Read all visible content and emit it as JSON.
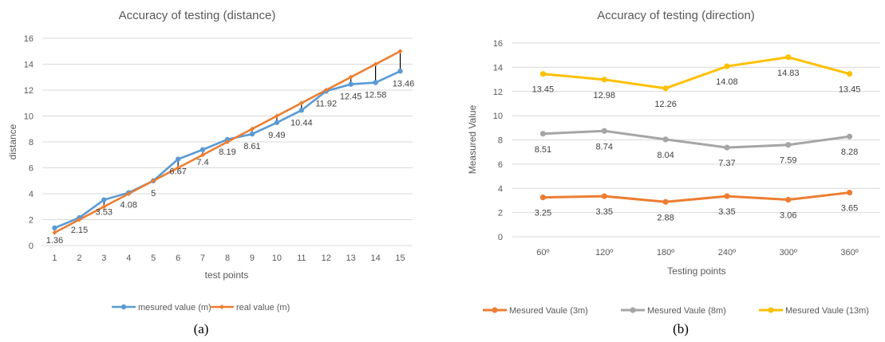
{
  "chart_data": [
    {
      "type": "line",
      "title": "Accuracy of testing (distance)",
      "xlabel": "test points",
      "ylabel": "distance",
      "ylim": [
        0,
        16
      ],
      "yticks": [
        0,
        2,
        4,
        6,
        8,
        10,
        12,
        14,
        16
      ],
      "grid": true,
      "legend_position": "bottom",
      "caption": "(a)",
      "categories": [
        "1",
        "2",
        "3",
        "4",
        "5",
        "6",
        "7",
        "8",
        "9",
        "10",
        "11",
        "12",
        "13",
        "14",
        "15"
      ],
      "series": [
        {
          "name": "mesured value (m)",
          "color": "#5b9bd5",
          "marker": "circle",
          "values": [
            1.36,
            2.15,
            3.53,
            4.08,
            5,
            6.67,
            7.4,
            8.19,
            8.61,
            9.49,
            10.44,
            11.92,
            12.45,
            12.58,
            13.46
          ]
        },
        {
          "name": "real value (m)",
          "color": "#ed7d31",
          "marker": "diamond",
          "values": [
            1,
            2,
            3,
            4,
            5,
            6,
            7,
            8,
            9,
            10,
            11,
            12,
            13,
            14,
            15
          ]
        }
      ],
      "data_labels": [
        "1.36",
        "2.15",
        "3.53",
        "4.08",
        "5",
        "6.67",
        "7.4",
        "8.19",
        "8.61",
        "9.49",
        "10.44",
        "11.92",
        "12.45",
        "12.58",
        "13.46"
      ]
    },
    {
      "type": "line",
      "title": "Accuracy of testing (direction)",
      "xlabel": "Testing points",
      "ylabel": "Measured Value",
      "ylim": [
        0,
        16
      ],
      "yticks": [
        0,
        2,
        4,
        6,
        8,
        10,
        12,
        14,
        16
      ],
      "grid": true,
      "legend_position": "bottom",
      "caption": "(b)",
      "categories": [
        "60º",
        "120º",
        "180º",
        "240º",
        "300º",
        "360º"
      ],
      "series": [
        {
          "name": "Mesured Vaule (3m)",
          "color": "#ed7d31",
          "values": [
            3.25,
            3.35,
            2.88,
            3.35,
            3.06,
            3.65
          ]
        },
        {
          "name": "Mesured Vaule (8m)",
          "color": "#a5a5a5",
          "values": [
            8.51,
            8.74,
            8.04,
            7.37,
            7.59,
            8.28
          ]
        },
        {
          "name": "Mesured Vaule (13m)",
          "color": "#ffc000",
          "values": [
            13.45,
            12.98,
            12.26,
            14.08,
            14.83,
            13.45
          ]
        }
      ]
    }
  ]
}
